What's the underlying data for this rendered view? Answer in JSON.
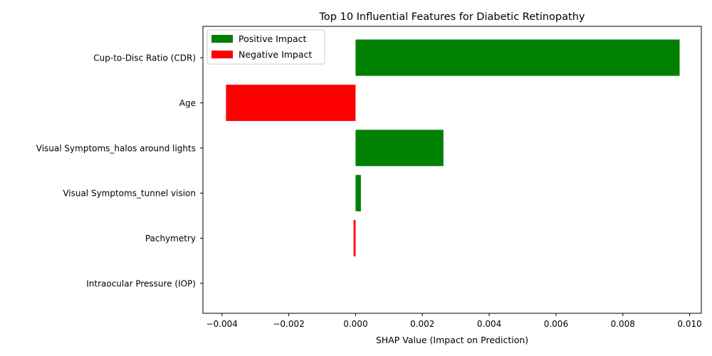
{
  "chart_data": {
    "type": "bar",
    "orientation": "horizontal",
    "title": "Top 10 Influential Features for Diabetic Retinopathy",
    "xlabel": "SHAP Value (Impact on Prediction)",
    "ylabel": "",
    "xlim": [
      -0.00457,
      0.01035
    ],
    "xticks": [
      -0.004,
      -0.002,
      0.0,
      0.002,
      0.004,
      0.006,
      0.008,
      0.01
    ],
    "xtick_labels": [
      "−0.004",
      "−0.002",
      "0.000",
      "0.002",
      "0.004",
      "0.006",
      "0.008",
      "0.010"
    ],
    "categories": [
      "Cup-to-Disc Ratio (CDR)",
      "Age",
      "Visual Symptoms_halos around lights",
      "Visual Symptoms_tunnel vision",
      "Pachymetry",
      "Intraocular Pressure (IOP)"
    ],
    "values": [
      0.0097,
      -0.00388,
      0.00263,
      0.00016,
      -6e-05,
      0.0
    ],
    "grid": false,
    "legend": {
      "placement": "top-left",
      "entries": [
        {
          "label": "Positive Impact",
          "color": "#008000"
        },
        {
          "label": "Negative Impact",
          "color": "#ff0000"
        }
      ]
    },
    "colors": {
      "positive": "#008000",
      "negative": "#ff0000"
    }
  }
}
